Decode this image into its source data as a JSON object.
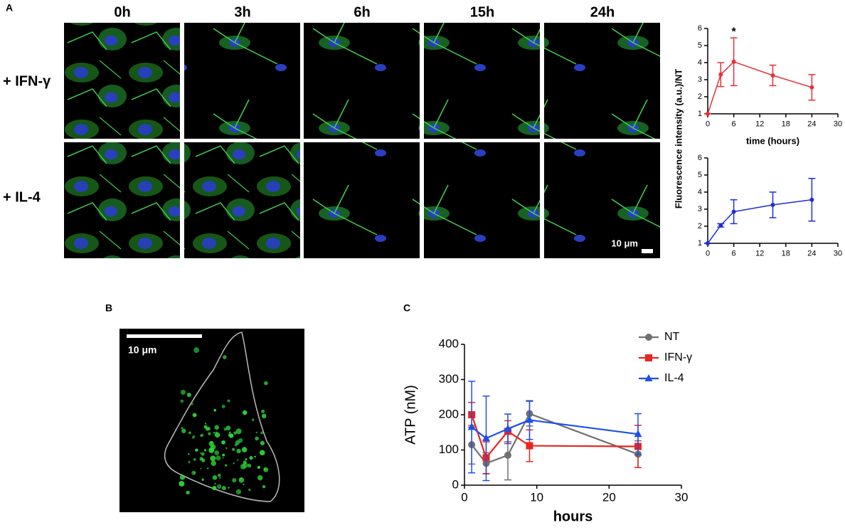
{
  "panel_labels": [
    "A",
    "B",
    "C"
  ],
  "figure_a": {
    "columns": [
      "0h",
      "3h",
      "6h",
      "15h",
      "24h"
    ],
    "rows": [
      "+ IFN-γ",
      "+ IL-4"
    ],
    "scale_bar": "10 μm",
    "ylabel": "Fluorescence intensity (a.u.)/NT"
  },
  "figure_b": {
    "scale_bar": "10 μm"
  },
  "chart_data": [
    {
      "type": "line",
      "xlabel": "time (hours)",
      "x": [
        0,
        3,
        6,
        15,
        24
      ],
      "values": [
        1,
        3.3,
        4.05,
        3.25,
        2.55
      ],
      "errors": [
        0,
        0.7,
        1.4,
        0.6,
        0.75
      ],
      "color": "#e8303a",
      "xlim": [
        0,
        30
      ],
      "xticks": [
        0,
        6,
        12,
        18,
        24,
        30
      ],
      "ylim": [
        1,
        6
      ],
      "yticks": [
        1,
        2,
        3,
        4,
        5,
        6
      ],
      "annotations": [
        {
          "text": "*",
          "x": 6
        }
      ]
    },
    {
      "type": "line",
      "x": [
        0,
        3,
        6,
        15,
        24
      ],
      "values": [
        1,
        2.05,
        2.85,
        3.25,
        3.55
      ],
      "errors": [
        0,
        0.1,
        0.7,
        0.75,
        1.25
      ],
      "color": "#1f2fd6",
      "xlim": [
        0,
        30
      ],
      "xticks": [
        0,
        6,
        12,
        18,
        24,
        30
      ],
      "ylim": [
        1,
        6
      ],
      "yticks": [
        1,
        2,
        3,
        4,
        5,
        6
      ]
    },
    {
      "type": "line",
      "xlabel": "hours",
      "ylabel": "ATP (nM)",
      "x": [
        1,
        3,
        6,
        9,
        24
      ],
      "legend": "top-right",
      "series": [
        {
          "name": "NT",
          "color": "#707070",
          "marker": "circle",
          "values": [
            115,
            62,
            85,
            203,
            88
          ],
          "errors": [
            55,
            30,
            70,
            35,
            38
          ]
        },
        {
          "name": "IFN-γ",
          "color": "#e8251f",
          "marker": "square",
          "values": [
            200,
            78,
            153,
            112,
            110
          ],
          "errors": [
            35,
            45,
            30,
            45,
            60
          ]
        },
        {
          "name": "IL-4",
          "color": "#1f4fe8",
          "marker": "triangle",
          "values": [
            165,
            133,
            160,
            185,
            145
          ],
          "errors": [
            130,
            120,
            42,
            55,
            58
          ]
        }
      ],
      "xlim": [
        0,
        30
      ],
      "xticks": [
        0,
        10,
        20,
        30
      ],
      "ylim": [
        0,
        400
      ],
      "yticks": [
        0,
        100,
        200,
        300,
        400
      ]
    }
  ]
}
